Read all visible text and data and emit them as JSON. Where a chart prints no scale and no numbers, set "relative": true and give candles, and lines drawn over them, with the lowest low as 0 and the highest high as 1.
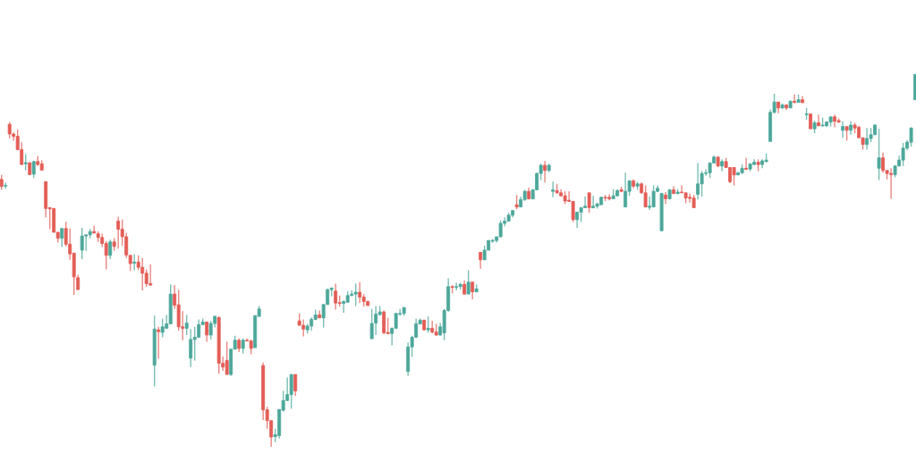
{
  "chart_data": {
    "type": "candlestick",
    "relative": true,
    "colors": [
      "#e35d55",
      "#4ca79a",
      "#e35d55",
      "#e35d55",
      "#e35d55",
      "#e35d55",
      "#4ca79a",
      "#e35d55",
      "#4ca79a",
      "#e35d55",
      "#e35d55",
      "#e35d55",
      "#e35d55",
      "#e35d55",
      "#e35d55",
      "#4ca79a",
      "#e35d55",
      "#e35d55",
      "#e35d55",
      "#e35d55",
      "#4ca79a",
      "#4ca79a",
      "#4ca79a",
      "#e35d55",
      "#e35d55",
      "#e35d55",
      "#e35d55",
      "#4ca79a",
      "#e35d55",
      "#e35d55",
      "#e35d55",
      "#e35d55",
      "#e35d55",
      "#4ca79a",
      "#e35d55",
      "#e35d55",
      "#e35d55",
      "#e35d55",
      "#4ca79a",
      "#e35d55",
      "#4ca79a",
      "#4ca79a",
      "#4ca79a",
      "#e35d55",
      "#e35d55",
      "#e35d55",
      "#4ca79a",
      "#4ca79a",
      "#4ca79a",
      "#4ca79a",
      "#4ca79a",
      "#e35d55",
      "#4ca79a",
      "#4ca79a",
      "#e35d55",
      "#e35d55",
      "#e35d55",
      "#4ca79a",
      "#4ca79a",
      "#e35d55",
      "#4ca79a",
      "#e35d55",
      "#e35d55",
      "#4ca79a",
      "#4ca79a",
      "#e35d55",
      "#e35d55",
      "#e35d55",
      "#4ca79a",
      "#4ca79a",
      "#4ca79a",
      "#4ca79a",
      "#4ca79a",
      "#e35d55",
      "#e35d55",
      "#e35d55",
      "#4ca79a",
      "#4ca79a",
      "#4ca79a",
      "#e35d55",
      "#4ca79a",
      "#4ca79a",
      "#4ca79a",
      "#e35d55",
      "#e35d55",
      "#4ca79a",
      "#4ca79a",
      "#4ca79a",
      "#4ca79a",
      "#e35d55",
      "#e35d55",
      "#e35d55",
      "#4ca79a",
      "#4ca79a",
      "#4ca79a",
      "#e35d55",
      "#e35d55",
      "#4ca79a",
      "#4ca79a",
      "#4ca79a",
      "#4ca79a",
      "#4ca79a",
      "#4ca79a",
      "#4ca79a",
      "#4ca79a",
      "#e35d55",
      "#4ca79a",
      "#e35d55",
      "#e35d55",
      "#4ca79a",
      "#4ca79a",
      "#4ca79a",
      "#e35d55",
      "#4ca79a",
      "#4ca79a",
      "#e35d55",
      "#4ca79a",
      "#e35d55",
      "#4ca79a",
      "#e35d55",
      "#4ca79a",
      "#4ca79a",
      "#4ca79a",
      "#4ca79a",
      "#4ca79a",
      "#4ca79a",
      "#4ca79a",
      "#4ca79a",
      "#e35d55",
      "#4ca79a",
      "#4ca79a",
      "#e35d55",
      "#4ca79a",
      "#4ca79a",
      "#4ca79a",
      "#e35d55",
      "#4ca79a",
      "#4ca79a",
      "#e35d55",
      "#e35d55",
      "#e35d55",
      "#e35d55",
      "#e35d55",
      "#4ca79a",
      "#4ca79a",
      "#4ca79a",
      "#e35d55",
      "#4ca79a",
      "#4ca79a",
      "#4ca79a",
      "#e35d55",
      "#e35d55",
      "#4ca79a",
      "#4ca79a",
      "#e35d55",
      "#4ca79a",
      "#4ca79a",
      "#e35d55",
      "#4ca79a",
      "#e35d55",
      "#e35d55",
      "#4ca79a",
      "#4ca79a",
      "#4ca79a",
      "#4ca79a",
      "#e35d55",
      "#4ca79a",
      "#e35d55",
      "#4ca79a",
      "#e35d55",
      "#e35d55",
      "#e35d55",
      "#e35d55",
      "#4ca79a",
      "#4ca79a",
      "#4ca79a",
      "#4ca79a",
      "#4ca79a",
      "#e35d55",
      "#4ca79a",
      "#e35d55",
      "#e35d55",
      "#e35d55",
      "#4ca79a",
      "#4ca79a",
      "#e35d55",
      "#4ca79a",
      "#4ca79a",
      "#e35d55",
      "#4ca79a",
      "#4ca79a",
      "#4ca79a",
      "#4ca79a",
      "#e35d55",
      "#4ca79a",
      "#e35d55",
      "#4ca79a",
      "#e35d55",
      "#4ca79a",
      "#e35d55",
      "#4ca79a",
      "#e35d55",
      "#4ca79a",
      "#e35d55",
      "#4ca79a",
      "#4ca79a",
      "#4ca79a",
      "#e35d55",
      "#e35d55",
      "#4ca79a",
      "#e35d55",
      "#4ca79a",
      "#e35d55",
      "#e35d55",
      "#e35d55",
      "#4ca79a",
      "#4ca79a",
      "#4ca79a",
      "#4ca79a",
      "#e35d55",
      "#e35d55",
      "#e35d55",
      "#4ca79a",
      "#4ca79a",
      "#4ca79a",
      "#4ca79a",
      "#4ca79a",
      "#4ca79a"
    ],
    "categories": [
      null,
      null,
      null,
      null,
      null,
      null,
      null,
      null,
      null,
      null,
      null,
      null,
      null,
      null,
      null,
      null,
      null,
      null,
      null,
      null,
      null,
      null,
      null,
      null,
      null,
      null,
      null,
      null,
      null,
      null,
      null,
      null,
      null,
      null,
      null,
      null,
      null,
      null,
      null,
      null,
      null,
      null,
      null,
      null,
      null,
      null,
      null,
      null,
      null,
      null,
      null,
      null,
      null,
      null,
      null,
      null,
      null,
      null,
      null,
      null,
      null,
      null,
      null,
      null,
      null,
      null,
      null,
      null,
      null,
      null,
      null,
      null,
      null,
      null,
      null,
      null,
      null,
      null,
      null,
      null,
      null,
      null,
      null,
      null,
      null,
      null,
      null,
      null,
      null,
      null,
      null,
      null,
      null,
      null,
      null,
      null,
      null,
      null,
      null,
      null,
      null,
      null,
      null,
      null,
      null,
      null,
      null,
      null,
      null,
      null,
      null,
      null,
      null,
      null,
      null,
      null,
      null,
      null,
      null,
      null,
      null,
      null,
      null,
      null,
      null,
      null,
      null,
      null,
      null,
      null,
      null,
      null,
      null,
      null,
      null,
      null,
      null,
      null,
      null,
      null,
      null,
      null,
      null,
      null,
      null,
      null,
      null,
      null,
      null,
      null,
      null,
      null,
      null,
      null,
      null,
      null,
      null,
      null,
      null,
      null,
      null,
      null,
      null,
      null,
      null,
      null,
      null,
      null,
      null,
      null,
      null,
      null,
      null,
      null,
      null,
      null,
      null,
      null,
      null,
      null,
      null,
      null,
      null,
      null,
      null,
      null,
      null,
      null,
      null,
      null,
      null,
      null,
      null,
      null,
      null,
      null,
      null,
      null,
      null,
      null,
      null,
      null,
      null,
      null,
      null,
      null,
      null,
      null,
      null,
      null,
      null,
      null,
      null,
      null,
      null,
      null,
      null,
      null,
      null,
      null,
      null,
      null,
      null,
      null,
      null,
      null,
      null,
      null
    ],
    "ohlc": [
      [
        0.718,
        0.73,
        0.69,
        0.699
      ],
      [
        0.7,
        0.709,
        0.693,
        0.702
      ],
      [
        0.866,
        0.872,
        0.828,
        0.84
      ],
      [
        0.84,
        0.844,
        0.822,
        0.834
      ],
      [
        0.834,
        0.852,
        0.798,
        0.798
      ],
      [
        0.798,
        0.818,
        0.758,
        0.758
      ],
      [
        0.76,
        0.786,
        0.742,
        0.763
      ],
      [
        0.763,
        0.763,
        0.73,
        0.731
      ],
      [
        0.732,
        0.768,
        0.722,
        0.766
      ],
      [
        0.766,
        0.781,
        0.754,
        0.758
      ],
      [
        0.76,
        0.77,
        0.743,
        0.743
      ],
      [
        0.712,
        0.712,
        0.616,
        0.64
      ],
      [
        0.642,
        0.643,
        0.584,
        0.639
      ],
      [
        0.64,
        0.64,
        0.576,
        0.576
      ],
      [
        0.576,
        0.576,
        0.548,
        0.56
      ],
      [
        0.56,
        0.587,
        0.536,
        0.586
      ],
      [
        0.586,
        0.604,
        0.538,
        0.544
      ],
      [
        0.544,
        0.586,
        0.502,
        0.518
      ],
      [
        0.52,
        0.52,
        0.408,
        0.456
      ],
      [
        0.454,
        0.462,
        0.422,
        0.422
      ],
      [
        0.528,
        0.588,
        0.504,
        0.566
      ],
      [
        0.566,
        0.57,
        0.526,
        0.569
      ],
      [
        0.569,
        0.584,
        0.56,
        0.578
      ],
      [
        0.578,
        0.594,
        0.572,
        0.574
      ],
      [
        0.572,
        0.578,
        0.55,
        0.562
      ],
      [
        0.562,
        0.572,
        0.536,
        0.546
      ],
      [
        0.546,
        0.552,
        0.476,
        0.514
      ],
      [
        0.514,
        0.556,
        0.504,
        0.55
      ],
      [
        0.55,
        0.56,
        0.526,
        0.538
      ],
      [
        0.606,
        0.618,
        0.532,
        0.584
      ],
      [
        0.584,
        0.61,
        0.54,
        0.564
      ],
      [
        0.564,
        0.574,
        0.507,
        0.515
      ],
      [
        0.514,
        0.514,
        0.472,
        0.492
      ],
      [
        0.493,
        0.517,
        0.474,
        0.496
      ],
      [
        0.496,
        0.514,
        0.474,
        0.482
      ],
      [
        0.482,
        0.507,
        0.42,
        0.466
      ],
      [
        0.466,
        0.476,
        0.43,
        0.438
      ],
      [
        0.438,
        0.49,
        0.434,
        0.434
      ],
      [
        0.219,
        0.352,
        0.162,
        0.316
      ],
      [
        0.314,
        0.322,
        0.236,
        0.309
      ],
      [
        0.307,
        0.344,
        0.294,
        0.322
      ],
      [
        0.318,
        0.354,
        0.318,
        0.33
      ],
      [
        0.33,
        0.436,
        0.33,
        0.41
      ],
      [
        0.41,
        0.434,
        0.37,
        0.38
      ],
      [
        0.381,
        0.421,
        0.312,
        0.322
      ],
      [
        0.322,
        0.364,
        0.286,
        0.318
      ],
      [
        0.318,
        0.354,
        0.3,
        0.332
      ],
      [
        0.238,
        0.316,
        0.214,
        0.288
      ],
      [
        0.288,
        0.322,
        0.231,
        0.294
      ],
      [
        0.294,
        0.342,
        0.294,
        0.328
      ],
      [
        0.328,
        0.344,
        0.326,
        0.335
      ],
      [
        0.335,
        0.335,
        0.282,
        0.3
      ],
      [
        0.3,
        0.338,
        0.288,
        0.331
      ],
      [
        0.331,
        0.352,
        0.32,
        0.35
      ],
      [
        0.347,
        0.35,
        0.196,
        0.224
      ],
      [
        0.224,
        0.242,
        0.204,
        0.214
      ],
      [
        0.232,
        0.282,
        0.194,
        0.194
      ],
      [
        0.194,
        0.262,
        0.19,
        0.262
      ],
      [
        0.262,
        0.298,
        0.262,
        0.286
      ],
      [
        0.286,
        0.291,
        0.254,
        0.264
      ],
      [
        0.264,
        0.291,
        0.25,
        0.286
      ],
      [
        0.286,
        0.29,
        0.284,
        0.284
      ],
      [
        0.284,
        0.287,
        0.248,
        0.264
      ],
      [
        0.266,
        0.352,
        0.266,
        0.352
      ],
      [
        0.35,
        0.378,
        0.35,
        0.37
      ],
      [
        0.218,
        0.226,
        0.072,
        0.099
      ],
      [
        0.099,
        0.107,
        0.048,
        0.07
      ],
      [
        0.07,
        0.07,
        0.0,
        0.026
      ],
      [
        0.027,
        0.048,
        0.012,
        0.032
      ],
      [
        0.03,
        0.1,
        0.022,
        0.1
      ],
      [
        0.098,
        0.15,
        0.094,
        0.124
      ],
      [
        0.124,
        0.186,
        0.124,
        0.14
      ],
      [
        0.14,
        0.194,
        0.102,
        0.194
      ],
      [
        0.194,
        0.194,
        0.136,
        0.15
      ],
      [
        0.338,
        0.358,
        0.326,
        0.326
      ],
      [
        0.326,
        0.342,
        0.296,
        0.316
      ],
      [
        0.314,
        0.33,
        0.304,
        0.324
      ],
      [
        0.324,
        0.347,
        0.312,
        0.342
      ],
      [
        0.342,
        0.368,
        0.34,
        0.354
      ],
      [
        0.354,
        0.366,
        0.346,
        0.346
      ],
      [
        0.346,
        0.382,
        0.32,
        0.382
      ],
      [
        0.382,
        0.424,
        0.382,
        0.422
      ],
      [
        0.422,
        0.428,
        0.404,
        0.426
      ],
      [
        0.418,
        0.438,
        0.368,
        0.386
      ],
      [
        0.387,
        0.406,
        0.376,
        0.385
      ],
      [
        0.385,
        0.392,
        0.36,
        0.39
      ],
      [
        0.388,
        0.418,
        0.388,
        0.406
      ],
      [
        0.406,
        0.42,
        0.404,
        0.41
      ],
      [
        0.41,
        0.438,
        0.378,
        0.415
      ],
      [
        0.415,
        0.442,
        0.386,
        0.402
      ],
      [
        0.402,
        0.41,
        0.376,
        0.39
      ],
      [
        0.39,
        0.392,
        0.379,
        0.379
      ],
      [
        0.29,
        0.37,
        0.29,
        0.331
      ],
      [
        0.332,
        0.378,
        0.3,
        0.356
      ],
      [
        0.355,
        0.378,
        0.352,
        0.362
      ],
      [
        0.362,
        0.366,
        0.302,
        0.306
      ],
      [
        0.307,
        0.346,
        0.302,
        0.304
      ],
      [
        0.304,
        0.32,
        0.272,
        0.318
      ],
      [
        0.318,
        0.358,
        0.317,
        0.358
      ],
      [
        0.356,
        0.37,
        0.352,
        0.358
      ],
      [
        0.358,
        0.374,
        0.352,
        0.374
      ],
      [
        0.202,
        0.28,
        0.19,
        0.268
      ],
      [
        0.268,
        0.298,
        0.242,
        0.294
      ],
      [
        0.294,
        0.344,
        0.294,
        0.33
      ],
      [
        0.33,
        0.344,
        0.328,
        0.34
      ],
      [
        0.34,
        0.34,
        0.312,
        0.314
      ],
      [
        0.314,
        0.35,
        0.306,
        0.318
      ],
      [
        0.318,
        0.338,
        0.304,
        0.308
      ],
      [
        0.308,
        0.33,
        0.298,
        0.3
      ],
      [
        0.3,
        0.332,
        0.298,
        0.322
      ],
      [
        0.306,
        0.37,
        0.286,
        0.366
      ],
      [
        0.366,
        0.452,
        0.362,
        0.43
      ],
      [
        0.43,
        0.434,
        0.412,
        0.428
      ],
      [
        0.428,
        0.44,
        0.42,
        0.43
      ],
      [
        0.43,
        0.44,
        0.422,
        0.436
      ],
      [
        0.436,
        0.446,
        0.408,
        0.41
      ],
      [
        0.41,
        0.474,
        0.41,
        0.442
      ],
      [
        0.442,
        0.442,
        0.396,
        0.416
      ],
      [
        0.416,
        0.436,
        0.416,
        0.424
      ],
      [
        0.522,
        0.522,
        0.478,
        0.502
      ],
      [
        0.502,
        0.54,
        0.502,
        0.528
      ],
      [
        0.528,
        0.554,
        0.528,
        0.554
      ],
      [
        0.552,
        0.558,
        0.548,
        0.554
      ],
      [
        0.554,
        0.564,
        0.548,
        0.564
      ],
      [
        0.564,
        0.608,
        0.562,
        0.6
      ],
      [
        0.6,
        0.616,
        0.592,
        0.606
      ],
      [
        0.606,
        0.628,
        0.606,
        0.622
      ],
      [
        0.622,
        0.636,
        0.616,
        0.634
      ],
      [
        0.65,
        0.676,
        0.638,
        0.644
      ],
      [
        0.644,
        0.672,
        0.644,
        0.664
      ],
      [
        0.664,
        0.69,
        0.66,
        0.686
      ],
      [
        0.686,
        0.696,
        0.664,
        0.666
      ],
      [
        0.666,
        0.692,
        0.664,
        0.69
      ],
      [
        0.69,
        0.736,
        0.69,
        0.734
      ],
      [
        0.734,
        0.76,
        0.716,
        0.756
      ],
      [
        0.756,
        0.768,
        0.71,
        0.742
      ],
      [
        0.742,
        0.76,
        0.738,
        0.756
      ],
      [
        0.686,
        0.712,
        0.67,
        0.69
      ],
      [
        0.688,
        0.706,
        0.68,
        0.682
      ],
      [
        0.682,
        0.692,
        0.672,
        0.674
      ],
      [
        0.674,
        0.686,
        0.652,
        0.66
      ],
      [
        0.662,
        0.686,
        0.659,
        0.659
      ],
      [
        0.659,
        0.659,
        0.604,
        0.61
      ],
      [
        0.61,
        0.63,
        0.588,
        0.63
      ],
      [
        0.63,
        0.644,
        0.604,
        0.642
      ],
      [
        0.642,
        0.672,
        0.642,
        0.646
      ],
      [
        0.682,
        0.682,
        0.628,
        0.642
      ],
      [
        0.642,
        0.674,
        0.64,
        0.646
      ],
      [
        0.646,
        0.656,
        0.64,
        0.652
      ],
      [
        0.65,
        0.672,
        0.65,
        0.67
      ],
      [
        0.67,
        0.676,
        0.66,
        0.668
      ],
      [
        0.67,
        0.678,
        0.662,
        0.666
      ],
      [
        0.666,
        0.692,
        0.666,
        0.674
      ],
      [
        0.674,
        0.692,
        0.672,
        0.688
      ],
      [
        0.69,
        0.698,
        0.684,
        0.686
      ],
      [
        0.644,
        0.736,
        0.644,
        0.686
      ],
      [
        0.686,
        0.716,
        0.674,
        0.714
      ],
      [
        0.714,
        0.718,
        0.694,
        0.7
      ],
      [
        0.7,
        0.712,
        0.69,
        0.706
      ],
      [
        0.706,
        0.71,
        0.68,
        0.682
      ],
      [
        0.682,
        0.702,
        0.644,
        0.644
      ],
      [
        0.643,
        0.672,
        0.636,
        0.646
      ],
      [
        0.644,
        0.702,
        0.644,
        0.686
      ],
      [
        0.686,
        0.702,
        0.684,
        0.694
      ],
      [
        0.58,
        0.682,
        0.58,
        0.68
      ],
      [
        0.676,
        0.684,
        0.652,
        0.666
      ],
      [
        0.666,
        0.692,
        0.664,
        0.69
      ],
      [
        0.69,
        0.7,
        0.68,
        0.68
      ],
      [
        0.68,
        0.692,
        0.678,
        0.684
      ],
      [
        0.684,
        0.702,
        0.682,
        0.682
      ],
      [
        0.682,
        0.682,
        0.654,
        0.668
      ],
      [
        0.67,
        0.68,
        0.656,
        0.667
      ],
      [
        0.668,
        0.676,
        0.642,
        0.642
      ],
      [
        0.678,
        0.762,
        0.664,
        0.706
      ],
      [
        0.706,
        0.74,
        0.672,
        0.734
      ],
      [
        0.734,
        0.746,
        0.728,
        0.736
      ],
      [
        0.736,
        0.764,
        0.722,
        0.762
      ],
      [
        0.762,
        0.782,
        0.762,
        0.778
      ],
      [
        0.778,
        0.778,
        0.752,
        0.754
      ],
      [
        0.754,
        0.772,
        0.74,
        0.766
      ],
      [
        0.766,
        0.776,
        0.75,
        0.75
      ],
      [
        0.75,
        0.75,
        0.708,
        0.712
      ],
      [
        0.75,
        0.75,
        0.702,
        0.73
      ],
      [
        0.73,
        0.738,
        0.73,
        0.736
      ],
      [
        0.736,
        0.758,
        0.732,
        0.748
      ],
      [
        0.748,
        0.776,
        0.744,
        0.745
      ],
      [
        0.746,
        0.76,
        0.74,
        0.76
      ],
      [
        0.758,
        0.772,
        0.756,
        0.764
      ],
      [
        0.764,
        0.772,
        0.74,
        0.758
      ],
      [
        0.758,
        0.772,
        0.748,
        0.768
      ],
      [
        0.766,
        0.788,
        0.764,
        0.77
      ],
      [
        0.82,
        0.906,
        0.82,
        0.898
      ],
      [
        0.898,
        0.948,
        0.896,
        0.926
      ],
      [
        0.926,
        0.926,
        0.896,
        0.91
      ],
      [
        0.91,
        0.922,
        0.908,
        0.918
      ],
      [
        0.918,
        0.92,
        0.904,
        0.91
      ],
      [
        0.91,
        0.93,
        0.91,
        0.928
      ],
      [
        0.928,
        0.946,
        0.922,
        0.925
      ],
      [
        0.925,
        0.946,
        0.925,
        0.932
      ],
      [
        0.932,
        0.942,
        0.924,
        0.924
      ],
      [
        0.892,
        0.91,
        0.878,
        0.894
      ],
      [
        0.894,
        0.894,
        0.854,
        0.854
      ],
      [
        0.854,
        0.876,
        0.842,
        0.87
      ],
      [
        0.87,
        0.892,
        0.862,
        0.862
      ],
      [
        0.862,
        0.884,
        0.86,
        0.864
      ],
      [
        0.862,
        0.874,
        0.86,
        0.872
      ],
      [
        0.872,
        0.886,
        0.86,
        0.886
      ],
      [
        0.886,
        0.892,
        0.858,
        0.874
      ],
      [
        0.876,
        0.882,
        0.87,
        0.872
      ],
      [
        0.85,
        0.874,
        0.83,
        0.86
      ],
      [
        0.86,
        0.86,
        0.822,
        0.85
      ],
      [
        0.85,
        0.874,
        0.838,
        0.864
      ],
      [
        0.864,
        0.87,
        0.842,
        0.856
      ],
      [
        0.858,
        0.862,
        0.83,
        0.83
      ],
      [
        0.83,
        0.83,
        0.798,
        0.812
      ],
      [
        0.812,
        0.856,
        0.798,
        0.828
      ],
      [
        0.828,
        0.856,
        0.818,
        0.838
      ],
      [
        0.838,
        0.866,
        0.838,
        0.864
      ],
      [
        0.748,
        0.854,
        0.716,
        0.776
      ],
      [
        0.776,
        0.79,
        0.736,
        0.742
      ],
      [
        0.742,
        0.742,
        0.718,
        0.734
      ],
      [
        0.734,
        0.748,
        0.666,
        0.731
      ],
      [
        0.731,
        0.756,
        0.724,
        0.754
      ],
      [
        0.754,
        0.782,
        0.754,
        0.77
      ],
      [
        0.77,
        0.816,
        0.754,
        0.802
      ],
      [
        0.802,
        0.824,
        0.796,
        0.818
      ],
      [
        0.818,
        0.858,
        0.806,
        0.856
      ],
      [
        0.932,
        1.0,
        0.932,
        1.0
      ]
    ]
  }
}
